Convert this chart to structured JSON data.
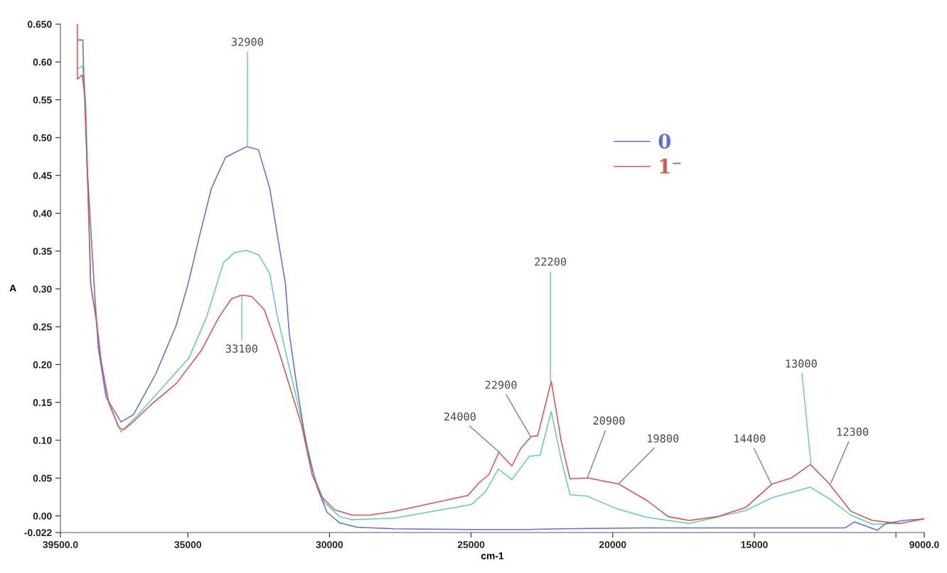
{
  "chart_data": {
    "type": "line",
    "xlabel": "cm-1",
    "ylabel": "A",
    "xlim": [
      39500,
      9000
    ],
    "ylim": [
      -0.022,
      0.65
    ],
    "xticks": [
      {
        "value": 39500,
        "label": "39500.0"
      },
      {
        "value": 35000,
        "label": "35000"
      },
      {
        "value": 30000,
        "label": "30000"
      },
      {
        "value": 25000,
        "label": "25000"
      },
      {
        "value": 20000,
        "label": "20000"
      },
      {
        "value": 15000,
        "label": "15000"
      },
      {
        "value": 10000,
        "label": null
      },
      {
        "value": 9000,
        "label": "9000.0"
      }
    ],
    "yticks": [
      {
        "value": -0.022,
        "label": "-0.022"
      },
      {
        "value": 0,
        "label": "0.00"
      },
      {
        "value": 0.05,
        "label": "0.05"
      },
      {
        "value": 0.1,
        "label": "0.10"
      },
      {
        "value": 0.15,
        "label": "0.15"
      },
      {
        "value": 0.2,
        "label": "0.20"
      },
      {
        "value": 0.25,
        "label": "0.25"
      },
      {
        "value": 0.3,
        "label": "0.30"
      },
      {
        "value": 0.35,
        "label": "0.35"
      },
      {
        "value": 0.4,
        "label": "0.40"
      },
      {
        "value": 0.45,
        "label": "0.45"
      },
      {
        "value": 0.5,
        "label": "0.50"
      },
      {
        "value": 0.55,
        "label": "0.55"
      },
      {
        "value": 0.6,
        "label": "0.60"
      },
      {
        "value": 0.65,
        "label": "0.650"
      }
    ],
    "grid": false,
    "legend": "top right",
    "series": [
      {
        "color": "#5fcfb0",
        "x": [
          38880,
          38710,
          38610,
          38430,
          38240,
          38060,
          37790,
          37360,
          36750,
          35940,
          34960,
          34340,
          33740,
          33350,
          32930,
          32500,
          32110,
          31860,
          31420,
          30980,
          30540,
          30180,
          29650,
          29200,
          27720,
          24990,
          24490,
          24040,
          23560,
          22940,
          22570,
          22170,
          21820,
          21510,
          20890,
          19900,
          18780,
          17300,
          15310,
          14380,
          13020,
          12330,
          11590,
          10840,
          9850
        ],
        "values": [
          0.591,
          0.595,
          0.546,
          0.305,
          0.258,
          0.201,
          0.149,
          0.111,
          0.134,
          0.168,
          0.209,
          0.263,
          0.335,
          0.348,
          0.351,
          0.345,
          0.32,
          0.267,
          0.196,
          0.126,
          0.052,
          0.018,
          -0.001,
          -0.005,
          -0.003,
          0.015,
          0.032,
          0.062,
          0.048,
          0.079,
          0.08,
          0.138,
          0.075,
          0.028,
          0.026,
          0.01,
          -0.002,
          -0.01,
          0.007,
          0.024,
          0.038,
          0.022,
          0.001,
          -0.011,
          -0.01
        ]
      },
      {
        "name": "0",
        "color": "#5a6ee8",
        "x": [
          38880,
          38710,
          38680,
          38560,
          38310,
          38160,
          37890,
          37360,
          36920,
          36130,
          35410,
          34990,
          34590,
          34170,
          33670,
          32930,
          32510,
          32110,
          31770,
          31560,
          31420,
          31160,
          30800,
          30440,
          30090,
          29650,
          29030,
          27720,
          25000,
          23000,
          21800,
          19000,
          15000,
          11800,
          11470,
          11090,
          10660,
          10350,
          9730,
          9000
        ],
        "values": [
          0.629,
          0.629,
          0.589,
          0.463,
          0.305,
          0.221,
          0.157,
          0.124,
          0.134,
          0.188,
          0.252,
          0.307,
          0.37,
          0.433,
          0.474,
          0.488,
          0.484,
          0.433,
          0.355,
          0.308,
          0.241,
          0.173,
          0.089,
          0.038,
          0.005,
          -0.009,
          -0.015,
          -0.017,
          -0.018,
          -0.018,
          -0.017,
          -0.016,
          -0.016,
          -0.016,
          -0.008,
          -0.013,
          -0.019,
          -0.01,
          -0.006,
          -0.004
        ]
      },
      {
        "name": "1⁻",
        "color": "#e0504f",
        "x": [
          38900,
          38900,
          38730,
          38630,
          38430,
          38240,
          38060,
          37800,
          37440,
          37270,
          37000,
          36300,
          35410,
          34520,
          33900,
          33460,
          33100,
          32750,
          32310,
          31860,
          31420,
          30980,
          30620,
          30270,
          29820,
          29200,
          28580,
          27720,
          25110,
          24740,
          24370,
          24020,
          23560,
          23250,
          22880,
          22650,
          22170,
          21820,
          21510,
          20860,
          19780,
          18780,
          18040,
          17300,
          16300,
          15310,
          14380,
          13700,
          13020,
          12370,
          11590,
          10840,
          9850,
          9000
        ],
        "values": [
          0.65,
          0.577,
          0.583,
          0.551,
          0.305,
          0.262,
          0.204,
          0.15,
          0.117,
          0.114,
          0.122,
          0.147,
          0.175,
          0.219,
          0.263,
          0.287,
          0.292,
          0.29,
          0.273,
          0.226,
          0.173,
          0.119,
          0.055,
          0.025,
          0.008,
          0.001,
          0.001,
          0.006,
          0.027,
          0.043,
          0.055,
          0.084,
          0.066,
          0.089,
          0.105,
          0.106,
          0.178,
          0.099,
          0.049,
          0.05,
          0.042,
          0.02,
          -0.001,
          -0.006,
          -0.001,
          0.011,
          0.042,
          0.05,
          0.068,
          0.043,
          0.006,
          -0.006,
          -0.01,
          -0.004
        ]
      }
    ],
    "annotations": [
      {
        "text": "32900",
        "x": 32900,
        "y": 0.488
      },
      {
        "text": "33100",
        "x": 33100,
        "y": 0.292
      },
      {
        "text": "24000",
        "x": 24000,
        "y": 0.084
      },
      {
        "text": "22900",
        "x": 22900,
        "y": 0.105
      },
      {
        "text": "22200",
        "x": 22200,
        "y": 0.178
      },
      {
        "text": "20900",
        "x": 20900,
        "y": 0.05
      },
      {
        "text": "19800",
        "x": 19800,
        "y": 0.042
      },
      {
        "text": "14400",
        "x": 14400,
        "y": 0.042
      },
      {
        "text": "13000",
        "x": 13000,
        "y": 0.068
      },
      {
        "text": "12300",
        "x": 12300,
        "y": 0.043
      }
    ]
  }
}
